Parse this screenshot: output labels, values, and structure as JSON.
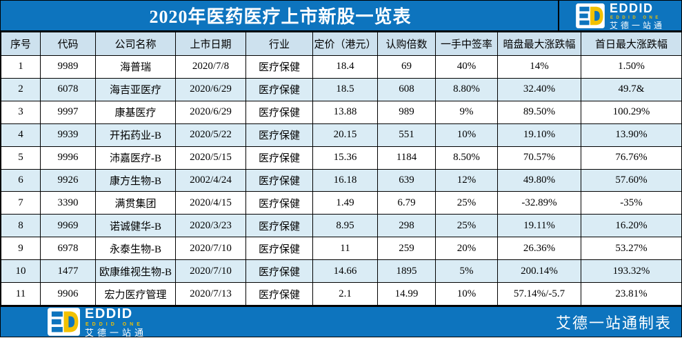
{
  "header": {
    "title": "2020年医药医疗上市新股一览表"
  },
  "logo": {
    "wordmark": "EDDID",
    "sub_wordmark": "EDDID ONE",
    "chinese_name": "艾德一站通"
  },
  "footer": {
    "credit": "艾德一站通制表"
  },
  "colors": {
    "band_blue": "#0d74be",
    "header_row_bg": "#cde1ee",
    "alt_row_bg": "#daecf5",
    "logo_yellow": "#f2c101",
    "grid_border": "#000000",
    "title_text": "#ffffff",
    "cell_text": "#000000"
  },
  "chart_data": {
    "type": "table",
    "title": "2020年医药医疗上市新股一览表",
    "columns": [
      "序号",
      "代码",
      "公司名称",
      "上市日期",
      "行业",
      "定价（港元）",
      "认购倍数",
      "一手中签率",
      "暗盘最大涨跌幅",
      "首日最大涨跌幅"
    ],
    "rows": [
      [
        "1",
        "9989",
        "海普瑞",
        "2020/7/8",
        "医疗保健",
        "18.4",
        "69",
        "40%",
        "14%",
        "1.50%"
      ],
      [
        "2",
        "6078",
        "海吉亚医疗",
        "2020/6/29",
        "医疗保健",
        "18.5",
        "608",
        "8.80%",
        "32.40%",
        "49.7&"
      ],
      [
        "3",
        "9997",
        "康基医疗",
        "2020/6/29",
        "医疗保健",
        "13.88",
        "989",
        "9%",
        "89.50%",
        "100.29%"
      ],
      [
        "4",
        "9939",
        "开拓药业-B",
        "2020/5/22",
        "医疗保健",
        "20.15",
        "551",
        "10%",
        "19.10%",
        "13.90%"
      ],
      [
        "5",
        "9996",
        "沛嘉医疗-B",
        "2020/5/15",
        "医疗保健",
        "15.36",
        "1184",
        "8.50%",
        "70.57%",
        "76.76%"
      ],
      [
        "6",
        "9926",
        "康方生物-B",
        "2002/4/24",
        "医疗保健",
        "16.18",
        "639",
        "12%",
        "49.80%",
        "57.60%"
      ],
      [
        "7",
        "3390",
        "满贯集团",
        "2020/4/15",
        "医疗保健",
        "1.49",
        "6.79",
        "25%",
        "-32.89%",
        "-35%"
      ],
      [
        "8",
        "9969",
        "诺诚健华-B",
        "2020/3/23",
        "医疗保健",
        "8.95",
        "298",
        "25%",
        "19.11%",
        "16.20%"
      ],
      [
        "9",
        "6978",
        "永泰生物-B",
        "2020/7/10",
        "医疗保健",
        "11",
        "259",
        "20%",
        "26.36%",
        "53.27%"
      ],
      [
        "10",
        "1477",
        "欧康维视生物-B",
        "2020/7/10",
        "医疗保健",
        "14.66",
        "1895",
        "5%",
        "200.14%",
        "193.32%"
      ],
      [
        "11",
        "9906",
        "宏力医疗管理",
        "2020/7/13",
        "医疗保健",
        "2.1",
        "14.99",
        "10%",
        "57.14%/-5.7",
        "23.81%"
      ]
    ]
  }
}
